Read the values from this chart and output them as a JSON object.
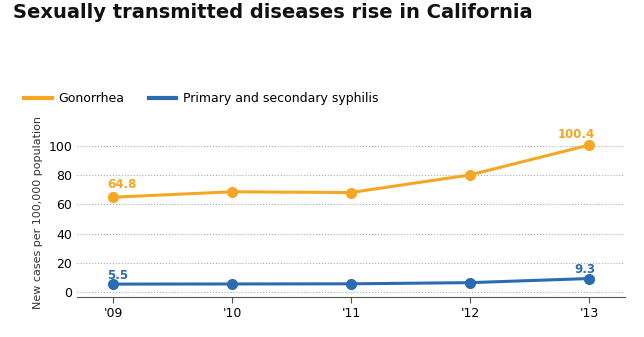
{
  "title": "Sexually transmitted diseases rise in California",
  "title_fontsize": 14,
  "title_fontweight": "bold",
  "ylabel": "New cases per 100,000 population",
  "ylabel_fontsize": 8,
  "years": [
    2009,
    2010,
    2011,
    2012,
    2013
  ],
  "xtick_labels": [
    "'09",
    "'10",
    "'11",
    "'12",
    "'13"
  ],
  "gonorrhea": [
    64.8,
    68.5,
    68.0,
    80.0,
    100.4
  ],
  "syphilis": [
    5.5,
    5.6,
    5.7,
    6.5,
    9.3
  ],
  "gonorrhea_color": "#F5A623",
  "syphilis_color": "#2B6CB0",
  "gonorrhea_label": "Gonorrhea",
  "syphilis_label": "Primary and secondary syphilis",
  "ylim_min": -3,
  "ylim_max": 112,
  "yticks": [
    0,
    20,
    40,
    60,
    80,
    100
  ],
  "grid_color": "#aaaaaa",
  "background_color": "#ffffff",
  "linewidth": 2.2,
  "markersize": 7
}
